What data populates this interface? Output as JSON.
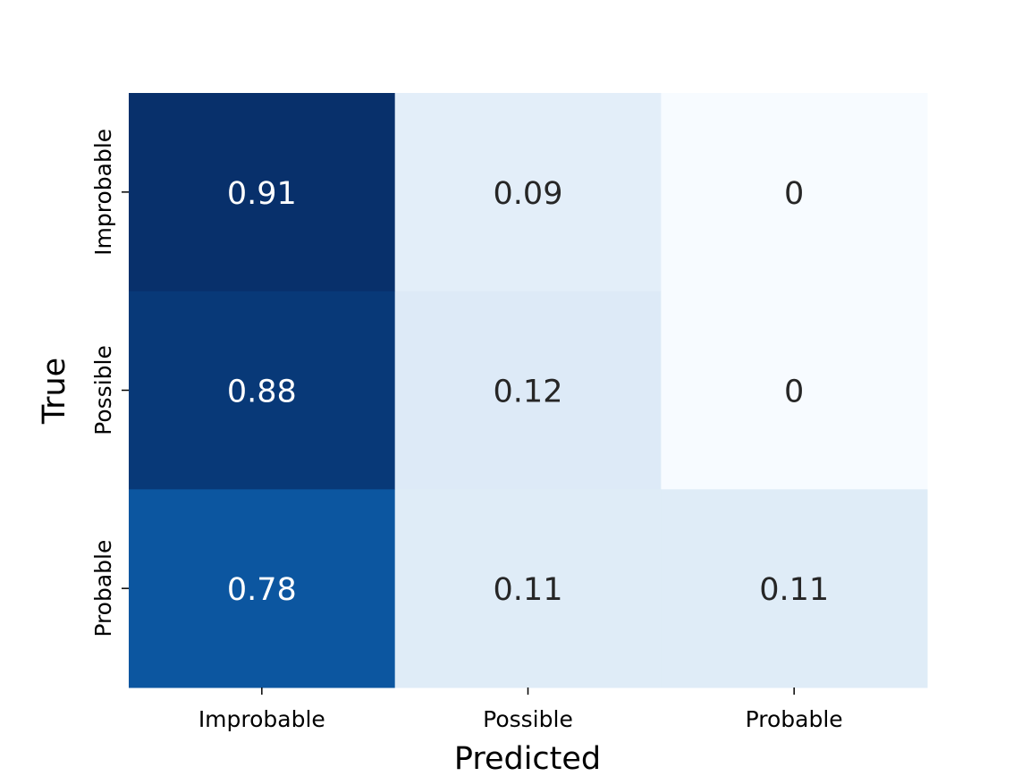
{
  "chart_data": {
    "type": "heatmap",
    "title": "",
    "xlabel": "Predicted",
    "ylabel": "True",
    "x_categories": [
      "Improbable",
      "Possible",
      "Probable"
    ],
    "y_categories": [
      "Improbable",
      "Possible",
      "Probable"
    ],
    "values": [
      [
        0.91,
        0.09,
        0
      ],
      [
        0.88,
        0.12,
        0
      ],
      [
        0.78,
        0.11,
        0.11
      ]
    ],
    "value_labels": [
      [
        "0.91",
        "0.09",
        "0"
      ],
      [
        "0.88",
        "0.12",
        "0"
      ],
      [
        "0.78",
        "0.11",
        "0.11"
      ]
    ],
    "colormap": "Blues",
    "vmin": 0,
    "vmax": 0.91,
    "colorbar": false,
    "grid": false
  }
}
